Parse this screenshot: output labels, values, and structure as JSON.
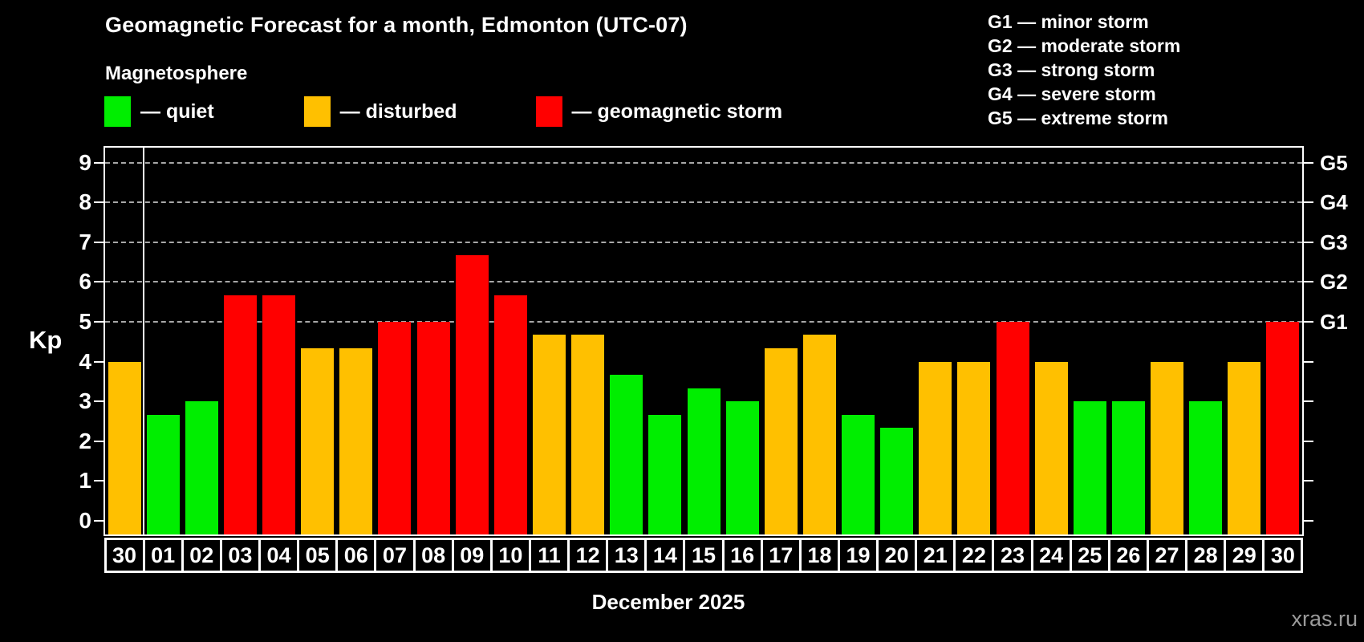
{
  "header": {
    "title": "Geomagnetic Forecast for a month, Edmonton (UTC-07)",
    "subtitle": "Magnetosphere"
  },
  "legend": {
    "items": [
      {
        "id": "quiet",
        "label": "— quiet",
        "color": "#00ee00"
      },
      {
        "id": "disturbed",
        "label": "— disturbed",
        "color": "#ffc000"
      },
      {
        "id": "storm",
        "label": "— geomagnetic storm",
        "color": "#ff0000"
      }
    ]
  },
  "g_legend": {
    "lines": [
      "G1 — minor storm",
      "G2 — moderate storm",
      "G3 — strong storm",
      "G4 — severe storm",
      "G5 — extreme storm"
    ]
  },
  "watermark": "xras.ru",
  "chart_data": {
    "type": "bar",
    "title": "Geomagnetic Forecast for a month, Edmonton (UTC-07)",
    "xlabel": "December 2025",
    "ylabel": "Kp",
    "ylim": [
      0,
      9
    ],
    "yticks": [
      "0",
      "1",
      "2",
      "3",
      "4",
      "5",
      "6",
      "7",
      "8",
      "9"
    ],
    "grid": "horizontal dashed lines at Kp 5,6,7,8,9",
    "legend_position": "top-left",
    "categories": [
      "30",
      "01",
      "02",
      "03",
      "04",
      "05",
      "06",
      "07",
      "08",
      "09",
      "10",
      "11",
      "12",
      "13",
      "14",
      "15",
      "16",
      "17",
      "18",
      "19",
      "20",
      "21",
      "22",
      "23",
      "24",
      "25",
      "26",
      "27",
      "28",
      "29",
      "30"
    ],
    "values": [
      4,
      2.67,
      3,
      5.67,
      5.67,
      4.33,
      4.33,
      5,
      5,
      6.67,
      5.67,
      4.67,
      4.67,
      3.67,
      2.67,
      3.33,
      3,
      4.33,
      4.67,
      2.67,
      2.33,
      4,
      4,
      5,
      4,
      3,
      3,
      4,
      3,
      4,
      5
    ],
    "statuses": [
      "disturbed",
      "quiet",
      "quiet",
      "storm",
      "storm",
      "disturbed",
      "disturbed",
      "storm",
      "storm",
      "storm",
      "storm",
      "disturbed",
      "disturbed",
      "quiet",
      "quiet",
      "quiet",
      "quiet",
      "disturbed",
      "disturbed",
      "quiet",
      "quiet",
      "disturbed",
      "disturbed",
      "storm",
      "disturbed",
      "quiet",
      "quiet",
      "disturbed",
      "quiet",
      "disturbed",
      "storm"
    ],
    "status_colors": {
      "quiet": "#00ee00",
      "disturbed": "#ffc000",
      "storm": "#ff0000"
    },
    "month_separator_after_index": 0,
    "right_axis": {
      "labels": [
        "G1",
        "G2",
        "G3",
        "G4",
        "G5"
      ],
      "kp_levels": [
        5,
        6,
        7,
        8,
        9
      ]
    }
  }
}
